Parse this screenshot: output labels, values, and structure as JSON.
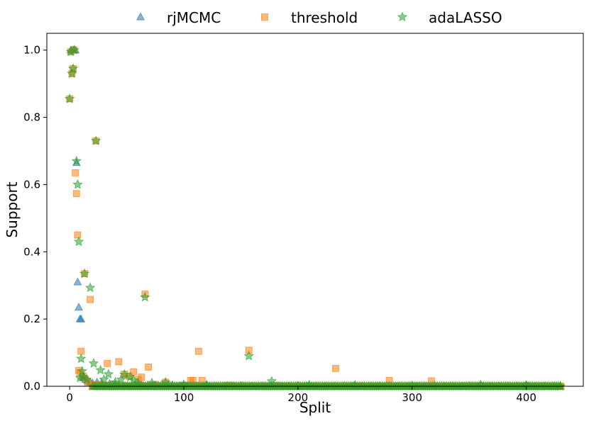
{
  "chart_data": {
    "type": "scatter",
    "title": "",
    "xlabel": "Split",
    "ylabel": "Support",
    "xlim": [
      -20,
      450
    ],
    "ylim": [
      0,
      1.05
    ],
    "xticks": [
      0,
      100,
      200,
      300,
      400
    ],
    "yticks": [
      0.0,
      0.2,
      0.4,
      0.6,
      0.8,
      1.0
    ],
    "xtick_labels": [
      "0",
      "100",
      "200",
      "300",
      "400"
    ],
    "ytick_labels": [
      "0.0",
      "0.2",
      "0.4",
      "0.6",
      "0.8",
      "1.0"
    ],
    "grid": false,
    "legend": "top, outside plot, horizontal",
    "baseline_series_values": {
      "x_from": 0,
      "x_to": 430,
      "y": 0.0
    },
    "series": [
      {
        "name": "rjMCMC",
        "marker": "triangle",
        "color": "#1f77b4",
        "points": [
          [
            1,
            1.0
          ],
          [
            2,
            1.0
          ],
          [
            3,
            1.0
          ],
          [
            4,
            1.0
          ],
          [
            5,
            1.0
          ],
          [
            6,
            0.665
          ],
          [
            7,
            0.31
          ],
          [
            8,
            0.235
          ],
          [
            9,
            0.2
          ],
          [
            10,
            0.2
          ],
          [
            11,
            0.03
          ],
          [
            12,
            0.025
          ],
          [
            14,
            0.02
          ],
          [
            16,
            0.015
          ],
          [
            18,
            0.012
          ],
          [
            20,
            0.01
          ],
          [
            24,
            0.012
          ],
          [
            28,
            0.01
          ],
          [
            35,
            0.008
          ],
          [
            40,
            0.006
          ],
          [
            60,
            0.005
          ],
          [
            90,
            0.004
          ],
          [
            120,
            0.003
          ],
          [
            150,
            0.002
          ],
          [
            200,
            0.002
          ],
          [
            250,
            0.001
          ],
          [
            300,
            0.001
          ],
          [
            350,
            0.001
          ],
          [
            400,
            0.001
          ],
          [
            430,
            0.0
          ]
        ]
      },
      {
        "name": "threshold",
        "marker": "square",
        "color": "#ff7f0e",
        "points": [
          [
            0,
            0.855
          ],
          [
            1,
            0.995
          ],
          [
            2,
            0.93
          ],
          [
            3,
            0.945
          ],
          [
            4,
            1.0
          ],
          [
            5,
            0.635
          ],
          [
            6,
            0.573
          ],
          [
            7,
            0.45
          ],
          [
            8,
            0.047
          ],
          [
            9,
            0.04
          ],
          [
            10,
            0.104
          ],
          [
            12,
            0.03
          ],
          [
            13,
            0.335
          ],
          [
            14,
            0.02
          ],
          [
            16,
            0.01
          ],
          [
            18,
            0.258
          ],
          [
            20,
            0.005
          ],
          [
            23,
            0.73
          ],
          [
            26,
            0.004
          ],
          [
            30,
            0.003
          ],
          [
            33,
            0.068
          ],
          [
            37,
            0.005
          ],
          [
            43,
            0.073
          ],
          [
            48,
            0.036
          ],
          [
            52,
            0.03
          ],
          [
            56,
            0.043
          ],
          [
            60,
            0.02
          ],
          [
            63,
            0.027
          ],
          [
            66,
            0.274
          ],
          [
            69,
            0.057
          ],
          [
            75,
            0.005
          ],
          [
            84,
            0.012
          ],
          [
            100,
            0.003
          ],
          [
            106,
            0.017
          ],
          [
            108,
            0.017
          ],
          [
            113,
            0.104
          ],
          [
            116,
            0.017
          ],
          [
            140,
            0.003
          ],
          [
            157,
            0.107
          ],
          [
            180,
            0.002
          ],
          [
            233,
            0.053
          ],
          [
            280,
            0.017
          ],
          [
            317,
            0.016
          ],
          [
            360,
            0.002
          ],
          [
            400,
            0.002
          ],
          [
            430,
            0.0
          ]
        ]
      },
      {
        "name": "adaLASSO",
        "marker": "star",
        "color": "#2ca02c",
        "points": [
          [
            0,
            0.855
          ],
          [
            1,
            0.995
          ],
          [
            2,
            0.93
          ],
          [
            3,
            0.945
          ],
          [
            4,
            1.0
          ],
          [
            6,
            0.67
          ],
          [
            7,
            0.6
          ],
          [
            8,
            0.43
          ],
          [
            9,
            0.025
          ],
          [
            10,
            0.082
          ],
          [
            11,
            0.045
          ],
          [
            12,
            0.028
          ],
          [
            13,
            0.335
          ],
          [
            15,
            0.02
          ],
          [
            18,
            0.293
          ],
          [
            21,
            0.068
          ],
          [
            23,
            0.73
          ],
          [
            27,
            0.048
          ],
          [
            30,
            0.02
          ],
          [
            34,
            0.036
          ],
          [
            40,
            0.012
          ],
          [
            45,
            0.02
          ],
          [
            48,
            0.035
          ],
          [
            53,
            0.028
          ],
          [
            56,
            0.018
          ],
          [
            60,
            0.01
          ],
          [
            66,
            0.265
          ],
          [
            72,
            0.01
          ],
          [
            84,
            0.012
          ],
          [
            100,
            0.005
          ],
          [
            120,
            0.004
          ],
          [
            157,
            0.09
          ],
          [
            177,
            0.015
          ],
          [
            210,
            0.004
          ],
          [
            250,
            0.003
          ],
          [
            300,
            0.002
          ],
          [
            360,
            0.004
          ],
          [
            400,
            0.003
          ],
          [
            430,
            0.0
          ]
        ]
      }
    ]
  }
}
